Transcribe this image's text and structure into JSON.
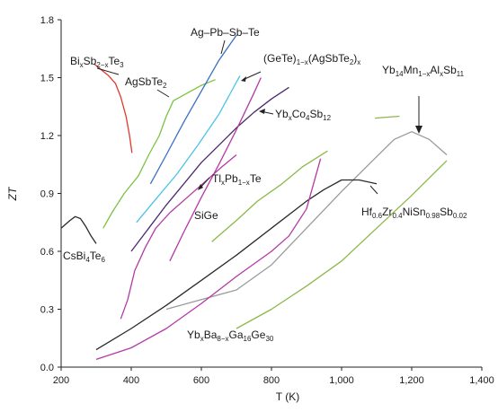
{
  "chart_data": {
    "type": "line",
    "title": "",
    "xlabel": "T (K)",
    "ylabel": "ZT",
    "xlim": [
      200,
      1400
    ],
    "ylim": [
      0,
      1.8
    ],
    "x_ticks": [
      "200",
      "400",
      "600",
      "800",
      "1,000",
      "1,200",
      "1,400"
    ],
    "y_ticks": [
      "0.0",
      "0.3",
      "0.6",
      "0.9",
      "1.2",
      "1.5",
      "1.8"
    ],
    "grid": false,
    "legend": "none",
    "series": [
      {
        "name": "CsBi4Te6",
        "color": "#2b2b2b",
        "x": [
          200,
          225,
          240,
          255,
          270,
          285,
          300
        ],
        "y": [
          0.72,
          0.76,
          0.78,
          0.77,
          0.73,
          0.68,
          0.64
        ]
      },
      {
        "name": "BixSb2-xTe3",
        "color": "#e0392b",
        "x": [
          295,
          315,
          335,
          355,
          370,
          385,
          395,
          402
        ],
        "y": [
          1.57,
          1.54,
          1.51,
          1.47,
          1.4,
          1.3,
          1.2,
          1.11
        ]
      },
      {
        "name": "AgSbTe2",
        "color": "#7cc242",
        "x": [
          320,
          345,
          380,
          420,
          450,
          480,
          500,
          520,
          560,
          600,
          640
        ],
        "y": [
          0.72,
          0.8,
          0.9,
          0.99,
          1.1,
          1.2,
          1.3,
          1.38,
          1.42,
          1.46,
          1.49
        ]
      },
      {
        "name": "Ag-Pb-Sb-Te",
        "color": "#3a6fc4",
        "x": [
          455,
          500,
          550,
          600,
          650,
          700
        ],
        "y": [
          0.95,
          1.1,
          1.27,
          1.43,
          1.59,
          1.72
        ]
      },
      {
        "name": "(GeTe)1-x(AgSbTe2)x",
        "color": "#4cc3e6",
        "x": [
          415,
          470,
          530,
          590,
          650,
          710
        ],
        "y": [
          0.75,
          0.87,
          1.0,
          1.15,
          1.31,
          1.51
        ]
      },
      {
        "name": "YbxCo4Sb12",
        "color": "#4b2a6e",
        "x": [
          400,
          450,
          500,
          550,
          600,
          650,
          700,
          750,
          800,
          850
        ],
        "y": [
          0.6,
          0.72,
          0.84,
          0.95,
          1.06,
          1.15,
          1.24,
          1.32,
          1.39,
          1.45
        ]
      },
      {
        "name": "TlxPb1-xTe",
        "color": "#b23aa5",
        "x": [
          510,
          550,
          600,
          650,
          700,
          750,
          770
        ],
        "y": [
          0.55,
          0.7,
          0.88,
          1.05,
          1.23,
          1.42,
          1.5
        ]
      },
      {
        "name": "SiGe",
        "color": "#8cb84a",
        "x": [
          700,
          800,
          900,
          1000,
          1100,
          1200,
          1300
        ],
        "y": [
          0.2,
          0.3,
          0.42,
          0.55,
          0.72,
          0.89,
          1.07
        ]
      },
      {
        "name": "Yb14Mn1-xAlxSb11",
        "color": "#9a9a9a",
        "x": [
          500,
          600,
          700,
          800,
          900,
          1000,
          1100,
          1150,
          1200,
          1250,
          1300
        ],
        "y": [
          0.3,
          0.35,
          0.4,
          0.53,
          0.72,
          0.91,
          1.09,
          1.18,
          1.22,
          1.18,
          1.1
        ]
      },
      {
        "name": "Hf0.6Zr0.4NiSn0.98Sb0.02",
        "color": "#2b2b2b",
        "x": [
          300,
          400,
          500,
          600,
          700,
          800,
          900,
          950,
          1000,
          1050,
          1100
        ],
        "y": [
          0.09,
          0.2,
          0.32,
          0.45,
          0.58,
          0.72,
          0.86,
          0.92,
          0.97,
          0.97,
          0.95
        ]
      },
      {
        "name": "YbxBa8-xGa16Ge30",
        "color": "#b23aa5",
        "x": [
          300,
          400,
          500,
          600,
          700,
          800,
          850,
          900,
          940
        ],
        "y": [
          0.04,
          0.1,
          0.2,
          0.33,
          0.47,
          0.6,
          0.68,
          0.82,
          1.08
        ]
      }
    ],
    "extra_segments": [
      {
        "color": "#8cb84a",
        "x": [
          630,
          700,
          760,
          830,
          890,
          960
        ],
        "y": [
          0.65,
          0.76,
          0.86,
          0.95,
          1.04,
          1.12
        ]
      },
      {
        "color": "#b23aa5",
        "x": [
          370,
          390,
          410,
          440,
          470,
          510,
          560,
          610,
          660,
          700
        ],
        "y": [
          0.25,
          0.35,
          0.5,
          0.62,
          0.72,
          0.8,
          0.88,
          0.96,
          1.04,
          1.1
        ]
      },
      {
        "color": "#8cb84a",
        "x": [
          1095,
          1165
        ],
        "y": [
          1.29,
          1.3
        ]
      }
    ],
    "annotations": [
      {
        "parts": [
          [
            "Ag–Pb–Sb–Te",
            ""
          ]
        ],
        "x": 212,
        "y": 40
      },
      {
        "parts": [
          [
            "Bi",
            ""
          ],
          [
            "x",
            "sub"
          ],
          [
            "Sb",
            ""
          ],
          [
            "2−x",
            "sub"
          ],
          [
            "Te",
            ""
          ],
          [
            "3",
            "sub"
          ]
        ],
        "x": 78,
        "y": 72
      },
      {
        "parts": [
          [
            "AgSbTe",
            ""
          ],
          [
            "2",
            "sub"
          ]
        ],
        "x": 139,
        "y": 95
      },
      {
        "parts": [
          [
            "(GeTe)",
            ""
          ],
          [
            "1−x",
            "sub"
          ],
          [
            "(AgSbTe",
            ""
          ],
          [
            "2",
            "sub"
          ],
          [
            ")",
            ""
          ],
          [
            "x",
            "sub"
          ]
        ],
        "x": 293,
        "y": 69
      },
      {
        "parts": [
          [
            "Yb",
            ""
          ],
          [
            "14",
            "sub"
          ],
          [
            "Mn",
            ""
          ],
          [
            "1−x",
            "sub"
          ],
          [
            "Al",
            ""
          ],
          [
            "x",
            "sub"
          ],
          [
            "Sb",
            ""
          ],
          [
            "11",
            "sub"
          ]
        ],
        "x": 425,
        "y": 82
      },
      {
        "parts": [
          [
            "Yb",
            ""
          ],
          [
            "x",
            "sub"
          ],
          [
            "Co",
            ""
          ],
          [
            "4",
            "sub"
          ],
          [
            "Sb",
            ""
          ],
          [
            "12",
            "sub"
          ]
        ],
        "x": 306,
        "y": 131
      },
      {
        "parts": [
          [
            "Tl",
            ""
          ],
          [
            "x",
            "sub"
          ],
          [
            "Pb",
            ""
          ],
          [
            "1−x",
            "sub"
          ],
          [
            "Te",
            ""
          ]
        ],
        "x": 236,
        "y": 203
      },
      {
        "parts": [
          [
            "SiGe",
            ""
          ]
        ],
        "x": 216,
        "y": 244
      },
      {
        "parts": [
          [
            "Hf",
            ""
          ],
          [
            "0.6",
            "sub"
          ],
          [
            "Zr",
            ""
          ],
          [
            "0.4",
            "sub"
          ],
          [
            "NiSn",
            ""
          ],
          [
            "0.98",
            "sub"
          ],
          [
            "Sb",
            ""
          ],
          [
            "0.02",
            "sub"
          ]
        ],
        "x": 402,
        "y": 240
      },
      {
        "parts": [
          [
            "CsBi",
            ""
          ],
          [
            "4",
            "sub"
          ],
          [
            "Te",
            ""
          ],
          [
            "6",
            "sub"
          ]
        ],
        "x": 70,
        "y": 289
      },
      {
        "parts": [
          [
            "Yb",
            ""
          ],
          [
            "x",
            "sub"
          ],
          [
            "Ba",
            ""
          ],
          [
            "8−x",
            "sub"
          ],
          [
            "Ga",
            ""
          ],
          [
            "16",
            "sub"
          ],
          [
            "Ge",
            ""
          ],
          [
            "30",
            "sub"
          ]
        ],
        "x": 208,
        "y": 377
      }
    ]
  }
}
